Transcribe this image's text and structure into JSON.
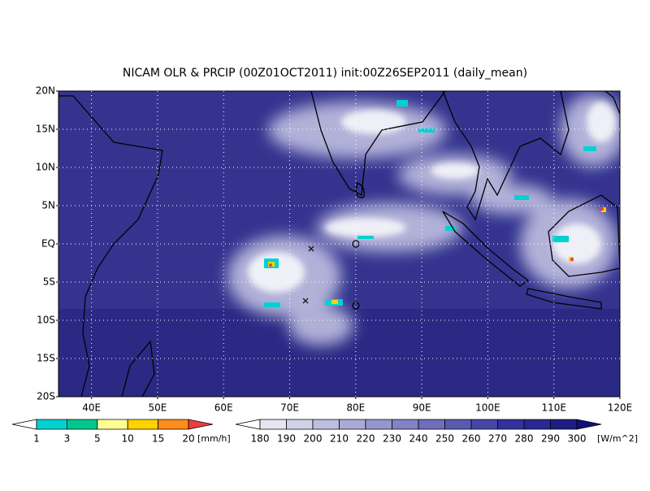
{
  "title": "NICAM OLR & PRCIP (00Z01OCT2011) init:00Z26SEP2011 (daily_mean)",
  "lat_labels": [
    "20N",
    "15N",
    "10N",
    "5N",
    "EQ",
    "5S",
    "10S",
    "15S",
    "20S"
  ],
  "lon_labels": [
    "40E",
    "50E",
    "60E",
    "70E",
    "80E",
    "90E",
    "100E",
    "110E",
    "120E"
  ],
  "precip_colorbar": {
    "unit": "[mm/h]",
    "ticks": [
      1,
      3,
      5,
      10,
      15,
      20
    ],
    "colors": [
      "#ffffff",
      "#00d2d2",
      "#00c88c",
      "#ffff96",
      "#ffd200",
      "#ff8c1e",
      "#f03c3c"
    ]
  },
  "olr_colorbar": {
    "unit": "[W/m^2]",
    "ticks": [
      180,
      190,
      200,
      210,
      220,
      230,
      240,
      250,
      260,
      270,
      280,
      290,
      300
    ],
    "colors": [
      "#ffffff",
      "#e6e6f0",
      "#d2d2e8",
      "#bebee0",
      "#aaaad8",
      "#9696ce",
      "#8282c4",
      "#6e6eba",
      "#5a5ab0",
      "#4646a6",
      "#32329c",
      "#282890",
      "#1e1e84",
      "#10107a"
    ]
  }
}
